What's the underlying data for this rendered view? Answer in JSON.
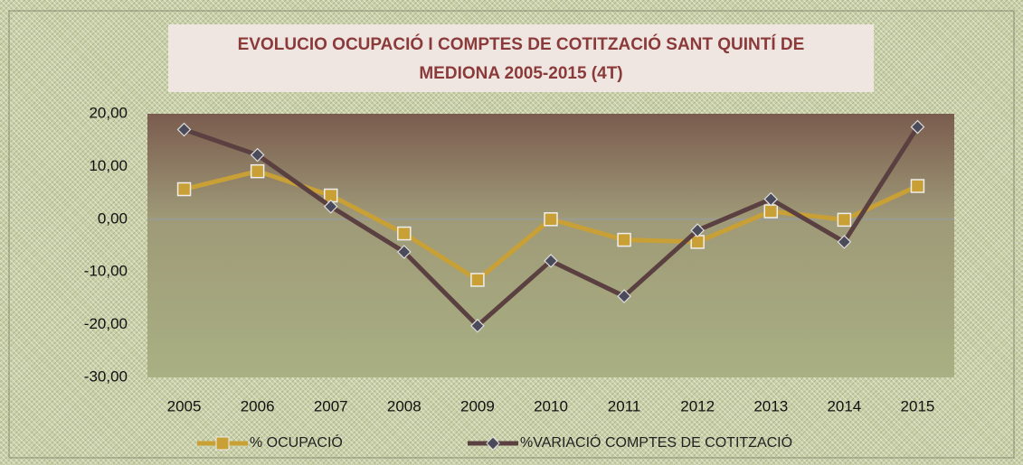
{
  "chart_data": {
    "type": "line",
    "title": "EVOLUCIO OCUPACIÓ I COMPTES DE COTITZACIÓ SANT QUINTÍ DE MEDIONA 2005-2015 (4T)",
    "categories": [
      "2005",
      "2006",
      "2007",
      "2008",
      "2009",
      "2010",
      "2011",
      "2012",
      "2013",
      "2014",
      "2015"
    ],
    "series": [
      {
        "name": "% OCUPACIÓ",
        "color": "#c9a035",
        "marker": "square",
        "values": [
          5.7,
          9.1,
          4.5,
          -2.7,
          -11.5,
          0.0,
          -3.9,
          -4.3,
          1.5,
          -0.1,
          6.3
        ]
      },
      {
        "name": "%VARIACIÓ COMPTES DE COTITZACIÓ",
        "color": "#5a4040",
        "marker": "diamond",
        "values": [
          17.0,
          12.2,
          2.4,
          -6.2,
          -20.2,
          -7.9,
          -14.6,
          -2.1,
          3.8,
          -4.3,
          17.5
        ]
      }
    ],
    "ylim": [
      -30,
      20
    ],
    "yticks": [
      {
        "value": -30,
        "label": "-30,00"
      },
      {
        "value": -20,
        "label": "-20,00"
      },
      {
        "value": -10,
        "label": "-10,00"
      },
      {
        "value": 0,
        "label": "0,00"
      },
      {
        "value": 10,
        "label": "10,00"
      },
      {
        "value": 20,
        "label": "20,00"
      }
    ],
    "legend": "bottom"
  }
}
